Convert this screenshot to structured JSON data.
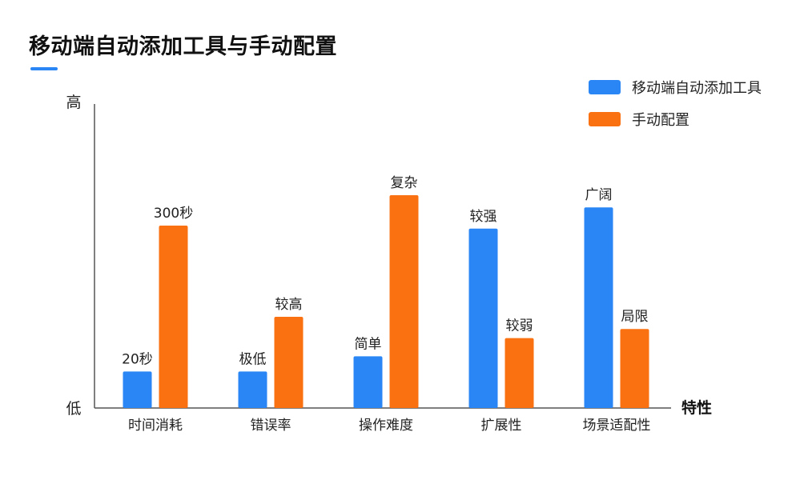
{
  "title": "移动端自动添加工具与手动配置",
  "colors": {
    "accent": "#2B86F5",
    "auto": "#2B86F5",
    "manual": "#FA7111",
    "axis": "#555555",
    "text": "#222222"
  },
  "chart_data": {
    "type": "bar",
    "title": "移动端自动添加工具与手动配置",
    "xlabel": "特性",
    "ylabel": "",
    "y_tick_labels": {
      "high": "高",
      "low": "低"
    },
    "ylim": [
      0,
      10
    ],
    "legend_position": "top-right",
    "categories": [
      "时间消耗",
      "错误率",
      "操作难度",
      "扩展性",
      "场景适配性"
    ],
    "series": [
      {
        "name": "移动端自动添加工具",
        "color": "#2B86F5",
        "values": [
          1.2,
          1.2,
          1.7,
          5.9,
          6.6
        ],
        "labels": [
          "20秒",
          "极低",
          "简单",
          "较强",
          "广阔"
        ]
      },
      {
        "name": "手动配置",
        "color": "#FA7111",
        "values": [
          6.0,
          3.0,
          7.0,
          2.3,
          2.6
        ],
        "labels": [
          "300秒",
          "较高",
          "复杂",
          "较弱",
          "局限"
        ]
      }
    ]
  }
}
